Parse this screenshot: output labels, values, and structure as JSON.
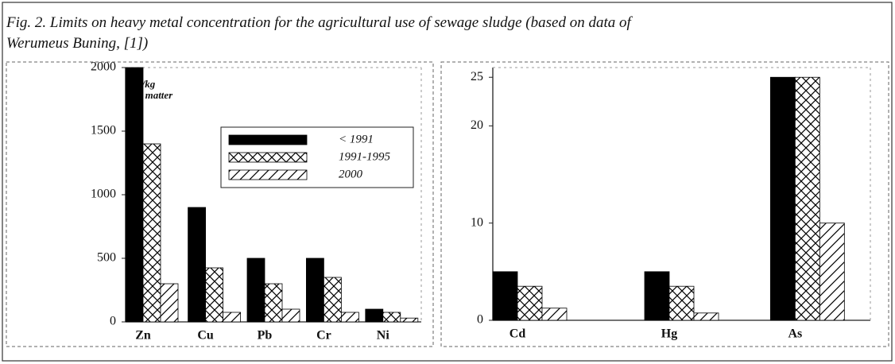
{
  "caption": [
    "Fig. 2. Limits on heavy metal concentration for the agricultural use of sewage sludge (based on data of",
    "Werumeus Buning, [1])"
  ],
  "chart_data": [
    {
      "type": "bar",
      "ylabel": [
        "mg/kg",
        "dry matter"
      ],
      "categories": [
        "Zn",
        "Cu",
        "Pb",
        "Cr",
        "Ni"
      ],
      "series": [
        {
          "name": "< 1991",
          "color": "#000000",
          "pattern": "solid",
          "values": [
            2000,
            900,
            500,
            500,
            100
          ]
        },
        {
          "name": "1991-1995",
          "color": "#000000",
          "pattern": "crosshatch",
          "values": [
            1400,
            425,
            300,
            350,
            75
          ]
        },
        {
          "name": "2000",
          "color": "#000000",
          "pattern": "diagonal",
          "values": [
            300,
            75,
            100,
            75,
            30
          ]
        }
      ],
      "ylim": [
        0,
        2000
      ],
      "yticks": [
        0,
        500,
        1000,
        1500,
        2000
      ],
      "legend": "upper right"
    },
    {
      "type": "bar",
      "categories": [
        "Cd",
        "Hg",
        "As"
      ],
      "series": [
        {
          "color": "#000000",
          "pattern": "solid",
          "values": [
            5,
            5,
            25
          ]
        },
        {
          "color": "#000000",
          "pattern": "crosshatch",
          "values": [
            3.5,
            3.5,
            25
          ]
        },
        {
          "color": "#000000",
          "pattern": "diagonal",
          "values": [
            1.25,
            0.75,
            10
          ]
        }
      ],
      "ylim": [
        0,
        26
      ],
      "yticks": [
        0,
        10,
        20,
        25
      ]
    }
  ]
}
